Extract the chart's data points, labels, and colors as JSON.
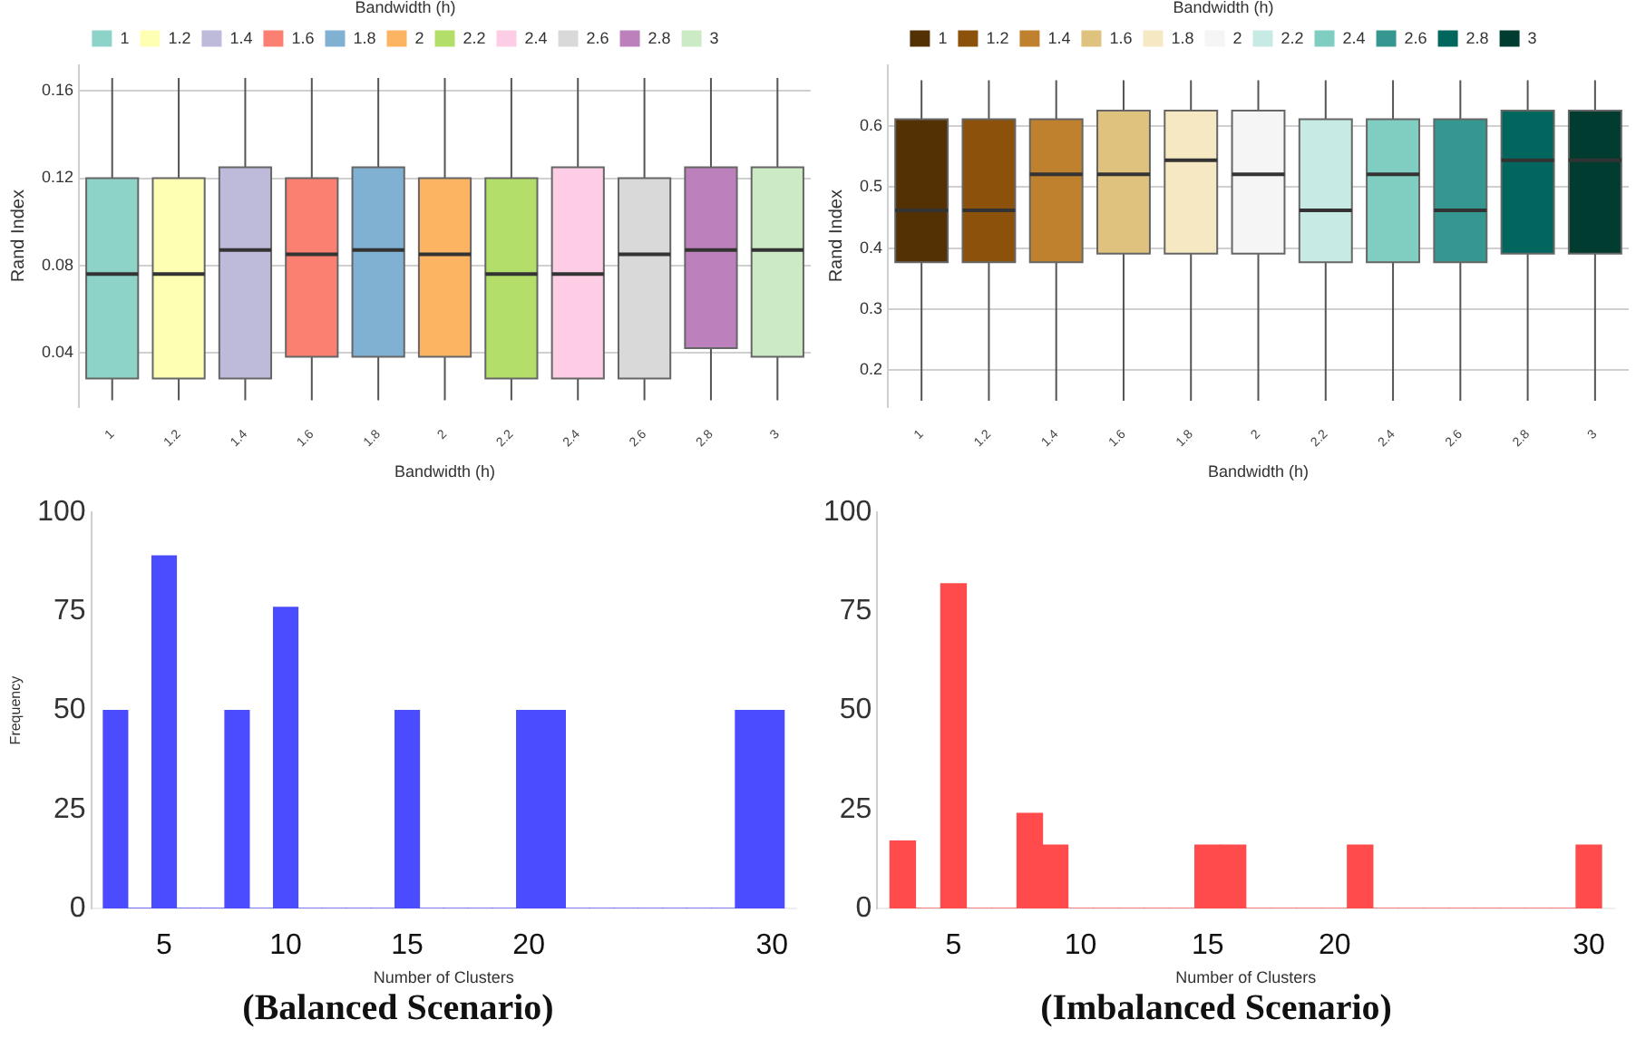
{
  "chart_data": [
    {
      "type": "box",
      "xlabel": "Bandwidth (h)",
      "ylabel": "Rand Index",
      "legend_title": "Bandwidth (h)",
      "legend": "top",
      "grid": "y",
      "categories": [
        "1",
        "1.2",
        "1.4",
        "1.6",
        "1.8",
        "2",
        "2.2",
        "2.4",
        "2.6",
        "2.8",
        "3"
      ],
      "ylim": [
        0.015,
        0.172
      ],
      "yticks": [
        0.04,
        0.08,
        0.12,
        0.16
      ],
      "series": [
        {
          "name": "1",
          "color": "#8dd3c7",
          "boxes": [
            {
              "low": 0.018,
              "q1": 0.028,
              "median": 0.076,
              "q3": 0.12,
              "high": 0.166
            },
            null,
            null,
            null,
            null,
            null,
            null,
            null,
            null,
            null,
            null
          ]
        },
        {
          "name": "1.2",
          "color": "#ffffb3",
          "boxes": [
            null,
            {
              "low": 0.018,
              "q1": 0.028,
              "median": 0.076,
              "q3": 0.12,
              "high": 0.166
            },
            null,
            null,
            null,
            null,
            null,
            null,
            null,
            null,
            null
          ]
        },
        {
          "name": "1.4",
          "color": "#bebada",
          "boxes": [
            null,
            null,
            {
              "low": 0.018,
              "q1": 0.028,
              "median": 0.087,
              "q3": 0.125,
              "high": 0.166
            },
            null,
            null,
            null,
            null,
            null,
            null,
            null,
            null
          ]
        },
        {
          "name": "1.6",
          "color": "#fb8072",
          "boxes": [
            null,
            null,
            null,
            {
              "low": 0.018,
              "q1": 0.038,
              "median": 0.085,
              "q3": 0.12,
              "high": 0.166
            },
            null,
            null,
            null,
            null,
            null,
            null,
            null
          ]
        },
        {
          "name": "1.8",
          "color": "#80b1d3",
          "boxes": [
            null,
            null,
            null,
            null,
            {
              "low": 0.018,
              "q1": 0.038,
              "median": 0.087,
              "q3": 0.125,
              "high": 0.166
            },
            null,
            null,
            null,
            null,
            null,
            null
          ]
        },
        {
          "name": "2",
          "color": "#fdb462",
          "boxes": [
            null,
            null,
            null,
            null,
            null,
            {
              "low": 0.018,
              "q1": 0.038,
              "median": 0.085,
              "q3": 0.12,
              "high": 0.166
            },
            null,
            null,
            null,
            null,
            null
          ]
        },
        {
          "name": "2.2",
          "color": "#b3de69",
          "boxes": [
            null,
            null,
            null,
            null,
            null,
            null,
            {
              "low": 0.018,
              "q1": 0.028,
              "median": 0.076,
              "q3": 0.12,
              "high": 0.166
            },
            null,
            null,
            null,
            null
          ]
        },
        {
          "name": "2.4",
          "color": "#fccde5",
          "boxes": [
            null,
            null,
            null,
            null,
            null,
            null,
            null,
            {
              "low": 0.018,
              "q1": 0.028,
              "median": 0.076,
              "q3": 0.125,
              "high": 0.166
            },
            null,
            null,
            null
          ]
        },
        {
          "name": "2.6",
          "color": "#d9d9d9",
          "boxes": [
            null,
            null,
            null,
            null,
            null,
            null,
            null,
            null,
            {
              "low": 0.018,
              "q1": 0.028,
              "median": 0.085,
              "q3": 0.12,
              "high": 0.166
            },
            null,
            null
          ]
        },
        {
          "name": "2.8",
          "color": "#bc80bd",
          "boxes": [
            null,
            null,
            null,
            null,
            null,
            null,
            null,
            null,
            null,
            {
              "low": 0.018,
              "q1": 0.042,
              "median": 0.087,
              "q3": 0.125,
              "high": 0.166
            },
            null
          ]
        },
        {
          "name": "3",
          "color": "#ccebc5",
          "boxes": [
            null,
            null,
            null,
            null,
            null,
            null,
            null,
            null,
            null,
            null,
            {
              "low": 0.018,
              "q1": 0.038,
              "median": 0.087,
              "q3": 0.125,
              "high": 0.166
            }
          ]
        }
      ]
    },
    {
      "type": "box",
      "xlabel": "Bandwidth (h)",
      "ylabel": "Rand Index",
      "legend_title": "Bandwidth (h)",
      "legend": "top",
      "grid": "y",
      "categories": [
        "1",
        "1.2",
        "1.4",
        "1.6",
        "1.8",
        "2",
        "2.2",
        "2.4",
        "2.6",
        "2.8",
        "3"
      ],
      "ylim": [
        0.14,
        0.7
      ],
      "yticks": [
        0.2,
        0.3,
        0.4,
        0.5,
        0.6
      ],
      "series": [
        {
          "name": "1",
          "color": "#543005",
          "boxes": [
            {
              "low": 0.15,
              "q1": 0.377,
              "median": 0.462,
              "q3": 0.611,
              "high": 0.675
            },
            null,
            null,
            null,
            null,
            null,
            null,
            null,
            null,
            null,
            null
          ]
        },
        {
          "name": "1.2",
          "color": "#8c510a",
          "boxes": [
            null,
            {
              "low": 0.15,
              "q1": 0.377,
              "median": 0.462,
              "q3": 0.611,
              "high": 0.675
            },
            null,
            null,
            null,
            null,
            null,
            null,
            null,
            null,
            null
          ]
        },
        {
          "name": "1.4",
          "color": "#bf812d",
          "boxes": [
            null,
            null,
            {
              "low": 0.15,
              "q1": 0.377,
              "median": 0.521,
              "q3": 0.611,
              "high": 0.675
            },
            null,
            null,
            null,
            null,
            null,
            null,
            null,
            null
          ]
        },
        {
          "name": "1.6",
          "color": "#dfc27d",
          "boxes": [
            null,
            null,
            null,
            {
              "low": 0.15,
              "q1": 0.391,
              "median": 0.521,
              "q3": 0.625,
              "high": 0.675
            },
            null,
            null,
            null,
            null,
            null,
            null,
            null
          ]
        },
        {
          "name": "1.8",
          "color": "#f6e8c3",
          "boxes": [
            null,
            null,
            null,
            null,
            {
              "low": 0.15,
              "q1": 0.391,
              "median": 0.544,
              "q3": 0.625,
              "high": 0.675
            },
            null,
            null,
            null,
            null,
            null,
            null
          ]
        },
        {
          "name": "2",
          "color": "#f5f5f5",
          "boxes": [
            null,
            null,
            null,
            null,
            null,
            {
              "low": 0.15,
              "q1": 0.391,
              "median": 0.521,
              "q3": 0.625,
              "high": 0.675
            },
            null,
            null,
            null,
            null,
            null
          ]
        },
        {
          "name": "2.2",
          "color": "#c7eae5",
          "boxes": [
            null,
            null,
            null,
            null,
            null,
            null,
            {
              "low": 0.15,
              "q1": 0.377,
              "median": 0.462,
              "q3": 0.611,
              "high": 0.675
            },
            null,
            null,
            null,
            null
          ]
        },
        {
          "name": "2.4",
          "color": "#80cdc1",
          "boxes": [
            null,
            null,
            null,
            null,
            null,
            null,
            null,
            {
              "low": 0.15,
              "q1": 0.377,
              "median": 0.521,
              "q3": 0.611,
              "high": 0.675
            },
            null,
            null,
            null
          ]
        },
        {
          "name": "2.6",
          "color": "#35978f",
          "boxes": [
            null,
            null,
            null,
            null,
            null,
            null,
            null,
            null,
            {
              "low": 0.15,
              "q1": 0.377,
              "median": 0.462,
              "q3": 0.611,
              "high": 0.675
            },
            null,
            null
          ]
        },
        {
          "name": "2.8",
          "color": "#01665e",
          "boxes": [
            null,
            null,
            null,
            null,
            null,
            null,
            null,
            null,
            null,
            {
              "low": 0.15,
              "q1": 0.391,
              "median": 0.544,
              "q3": 0.625,
              "high": 0.675
            },
            null
          ]
        },
        {
          "name": "3",
          "color": "#003c30",
          "boxes": [
            null,
            null,
            null,
            null,
            null,
            null,
            null,
            null,
            null,
            null,
            {
              "low": 0.15,
              "q1": 0.391,
              "median": 0.544,
              "q3": 0.625,
              "high": 0.675
            }
          ]
        }
      ]
    },
    {
      "type": "histogram",
      "title": "(Balanced Scenario)",
      "xlabel": "Number of Clusters",
      "ylabel": "Frequency",
      "color": "#4b4bff",
      "xlim": [
        2,
        31
      ],
      "xticks": [
        5,
        10,
        15,
        20,
        30
      ],
      "ylim": [
        0,
        100
      ],
      "yticks": [
        0,
        25,
        50,
        75,
        100
      ],
      "bins": [
        2.5,
        3.5,
        4.5,
        5.5,
        6.5,
        7.5,
        8.5,
        9.5,
        10.5,
        11.5,
        12.5,
        13.5,
        14.5,
        15.5,
        16.5,
        17.5,
        18.5,
        19.5,
        20.5,
        21.5,
        22.5,
        23.5,
        24.5,
        25.5,
        26.5,
        27.5,
        28.5,
        29.5,
        30.5
      ],
      "values": [
        50,
        0,
        89,
        0,
        0,
        50,
        0,
        76,
        0,
        0,
        0,
        0,
        50,
        0,
        0,
        0,
        0,
        50,
        50,
        0,
        0,
        0,
        0,
        0,
        0,
        0,
        50,
        50
      ]
    },
    {
      "type": "histogram",
      "title": "(Imbalanced Scenario)",
      "xlabel": "Number of Clusters",
      "color": "#ff4b4b",
      "xlim": [
        2,
        31
      ],
      "xticks": [
        5,
        10,
        15,
        20,
        30
      ],
      "ylim": [
        0,
        100
      ],
      "yticks": [
        0,
        25,
        50,
        75,
        100
      ],
      "bins": [
        2.5,
        3.5,
        4.5,
        5.5,
        6.5,
        7.5,
        8.5,
        9.5,
        10.5,
        11.5,
        12.5,
        13.5,
        14.5,
        15.5,
        16.5,
        17.5,
        18.5,
        19.5,
        20.5,
        21.5,
        22.5,
        23.5,
        24.5,
        25.5,
        26.5,
        27.5,
        28.5,
        29.5,
        30.5
      ],
      "values": [
        17,
        0,
        82,
        0,
        0,
        24,
        16,
        0,
        0,
        0,
        0,
        0,
        16,
        16,
        0,
        0,
        0,
        0,
        16,
        0,
        0,
        0,
        0,
        0,
        0,
        0,
        0,
        16
      ]
    }
  ]
}
